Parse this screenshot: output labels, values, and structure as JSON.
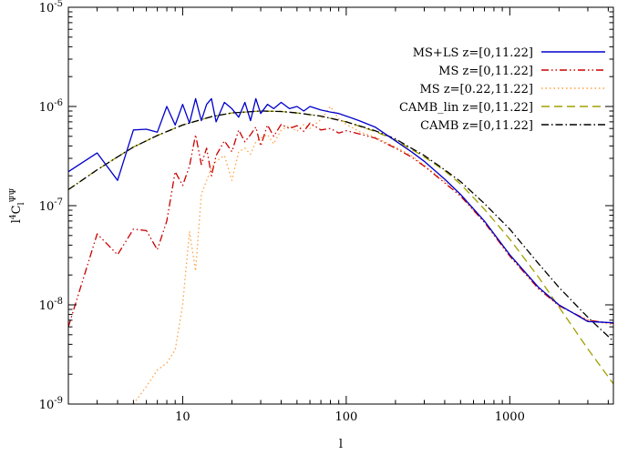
{
  "chart_data": {
    "type": "line",
    "title": "",
    "xlabel": "l",
    "ylabel": "l⁴C_l^ΨΨ",
    "xscale": "log",
    "yscale": "log",
    "xlim": [
      2,
      4300
    ],
    "ylim": [
      1e-09,
      1e-05
    ],
    "grid": false,
    "legend_placement": "top-right",
    "x_ticks": [
      {
        "value": 10,
        "label": "10"
      },
      {
        "value": 100,
        "label": "100"
      },
      {
        "value": 1000,
        "label": "1000"
      }
    ],
    "y_ticks": [
      {
        "value": 1e-09,
        "base": "10",
        "exp": "-9"
      },
      {
        "value": 1e-08,
        "base": "10",
        "exp": "-8"
      },
      {
        "value": 1e-07,
        "base": "10",
        "exp": "-7"
      },
      {
        "value": 1e-06,
        "base": "10",
        "exp": "-6"
      },
      {
        "value": 1e-05,
        "base": "10",
        "exp": "-5"
      }
    ],
    "series": [
      {
        "name": "MS+LS z=[0,11.22]",
        "color": "#0000cc",
        "dash": "solid",
        "x": [
          2,
          3,
          4,
          5,
          6,
          7,
          8,
          9,
          10,
          11,
          12,
          13,
          14,
          15,
          16,
          18,
          20,
          22,
          24,
          26,
          28,
          30,
          33,
          36,
          40,
          45,
          50,
          55,
          60,
          70,
          80,
          90,
          100,
          120,
          150,
          200,
          250,
          300,
          400,
          500,
          700,
          1000,
          1500,
          2000,
          3000,
          4300
        ],
        "y": [
          2.2e-07,
          3.4e-07,
          1.8e-07,
          5.8e-07,
          5.9e-07,
          5.5e-07,
          1e-06,
          6.5e-07,
          1.05e-06,
          6.8e-07,
          1.2e-06,
          7.2e-07,
          1.05e-06,
          1.2e-06,
          7e-07,
          1.1e-06,
          9.5e-07,
          7.8e-07,
          1.1e-06,
          7.2e-07,
          1.2e-06,
          8.5e-07,
          1.05e-06,
          9.5e-07,
          1.1e-06,
          9.5e-07,
          1e-06,
          9e-07,
          1e-06,
          9.2e-07,
          8.8e-07,
          8.5e-07,
          8e-07,
          7.2e-07,
          6.2e-07,
          4.5e-07,
          3.5e-07,
          2.8e-07,
          1.85e-07,
          1.3e-07,
          7e-08,
          3.2e-08,
          1.5e-08,
          1e-08,
          6.8e-09,
          6.6e-09
        ]
      },
      {
        "name": "MS z=[0,11.22]",
        "color": "#cc0000",
        "dash": "dash-dot-dot",
        "x": [
          2,
          3,
          4,
          5,
          6,
          7,
          8,
          9,
          10,
          11,
          12,
          13,
          14,
          15,
          16,
          18,
          20,
          22,
          24,
          26,
          28,
          30,
          33,
          36,
          40,
          45,
          50,
          55,
          60,
          70,
          80,
          90,
          100,
          120,
          150,
          200,
          250,
          300,
          400,
          500,
          700,
          1000,
          1500,
          2000,
          3000,
          4300
        ],
        "y": [
          6e-09,
          5.2e-08,
          3.2e-08,
          5.8e-08,
          5.6e-08,
          3.6e-08,
          7e-08,
          2.2e-07,
          1.6e-07,
          2.5e-07,
          5.2e-07,
          2.6e-07,
          3.8e-07,
          2e-07,
          3.2e-07,
          4.5e-07,
          3.5e-07,
          5.8e-07,
          4.4e-07,
          5.2e-07,
          6.2e-07,
          4e-07,
          6.5e-07,
          5e-07,
          6.6e-07,
          6e-07,
          6.4e-07,
          5.6e-07,
          6.8e-07,
          5.8e-07,
          6e-07,
          5.4e-07,
          5.7e-07,
          5.3e-07,
          4.8e-07,
          3.8e-07,
          3.1e-07,
          2.5e-07,
          1.7e-07,
          1.25e-07,
          6.8e-08,
          3.1e-08,
          1.45e-08,
          9.8e-09,
          7e-09,
          6.5e-09
        ]
      },
      {
        "name": "MS z=[0.22,11.22]",
        "color": "#ffa040",
        "dash": "dotted",
        "x": [
          5,
          6,
          7,
          8,
          9,
          10,
          11,
          12,
          13,
          14,
          15,
          16,
          18,
          20,
          22,
          24,
          26,
          28,
          30,
          33,
          36,
          40,
          45,
          50,
          55,
          60,
          70,
          80,
          90,
          100,
          120,
          150,
          200,
          250,
          300,
          400,
          500,
          700,
          1000,
          1500,
          2000,
          3000,
          4300
        ],
        "y": [
          1e-09,
          1.5e-09,
          2.2e-09,
          2.6e-09,
          3.5e-09,
          1e-08,
          5.5e-08,
          2.2e-08,
          1.3e-07,
          1.8e-07,
          2.4e-07,
          2.8e-07,
          3.2e-07,
          1.8e-07,
          3.5e-07,
          3.8e-07,
          3.3e-07,
          4.4e-07,
          4.8e-07,
          5.2e-07,
          4.2e-07,
          5.8e-07,
          6.4e-07,
          5.6e-07,
          6.6e-07,
          6e-07,
          7.4e-07,
          1e-06,
          7.5e-07,
          6.6e-07,
          5.6e-07,
          4.9e-07,
          3.9e-07,
          3.2e-07,
          2.55e-07,
          1.75e-07,
          1.25e-07,
          6.8e-08,
          3.1e-08,
          1.45e-08,
          9.8e-09,
          7e-09,
          6.3e-09
        ]
      },
      {
        "name": "CAMB_lin z=[0,11.22]",
        "color": "#a0a000",
        "dash": "dashed",
        "x": [
          2,
          3,
          4,
          5,
          7,
          10,
          15,
          20,
          30,
          40,
          50,
          70,
          100,
          150,
          200,
          300,
          400,
          500,
          700,
          1000,
          1500,
          2000,
          3000,
          4300
        ],
        "y": [
          1.45e-07,
          2.3e-07,
          3.1e-07,
          3.9e-07,
          5.1e-07,
          6.5e-07,
          7.9e-07,
          8.6e-07,
          9e-07,
          8.9e-07,
          8.6e-07,
          8e-07,
          7e-07,
          5.6e-07,
          4.6e-07,
          3.1e-07,
          2.25e-07,
          1.65e-07,
          9.2e-08,
          4.6e-08,
          1.9e-08,
          9.5e-09,
          3.6e-09,
          1.6e-09
        ]
      },
      {
        "name": "CAMB z=[0,11.22]",
        "color": "#000000",
        "dash": "dash-dot",
        "x": [
          2,
          3,
          4,
          5,
          7,
          10,
          15,
          20,
          30,
          40,
          50,
          70,
          100,
          150,
          200,
          300,
          400,
          500,
          700,
          1000,
          1500,
          2000,
          3000,
          4300
        ],
        "y": [
          1.45e-07,
          2.3e-07,
          3.1e-07,
          3.9e-07,
          5.1e-07,
          6.5e-07,
          7.9e-07,
          8.6e-07,
          9e-07,
          8.9e-07,
          8.6e-07,
          8e-07,
          7e-07,
          5.7e-07,
          4.7e-07,
          3.2e-07,
          2.3e-07,
          1.75e-07,
          1.05e-07,
          5.8e-08,
          2.6e-08,
          1.5e-08,
          7.5e-09,
          4.3e-09
        ]
      }
    ]
  }
}
